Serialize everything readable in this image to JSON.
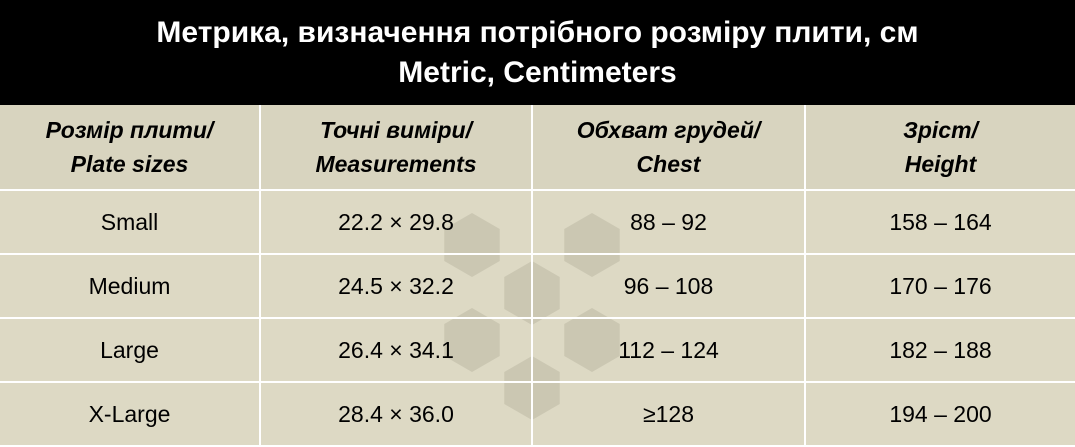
{
  "header": {
    "title": [
      "Метрика, визначення потрібного розміру плити, см",
      "Metric, Centimeters"
    ]
  },
  "table": {
    "columns": [
      [
        "Розмір плити/",
        "Plate sizes"
      ],
      [
        "Точні виміри/",
        "Measurements"
      ],
      [
        "Обхват грудей/",
        "Chest"
      ],
      [
        "Зрiст/",
        "Height"
      ]
    ],
    "rows": [
      [
        "Small",
        "22.2 × 29.8",
        "88 – 92",
        "158 – 164"
      ],
      [
        "Medium",
        "24.5 × 32.2",
        "96 – 108",
        "170 – 176"
      ],
      [
        "Large",
        "26.4 × 34.1",
        "112 – 124",
        "182 – 188"
      ],
      [
        "X-Large",
        "28.4 × 36.0",
        "≥128",
        "194 – 200"
      ]
    ]
  }
}
